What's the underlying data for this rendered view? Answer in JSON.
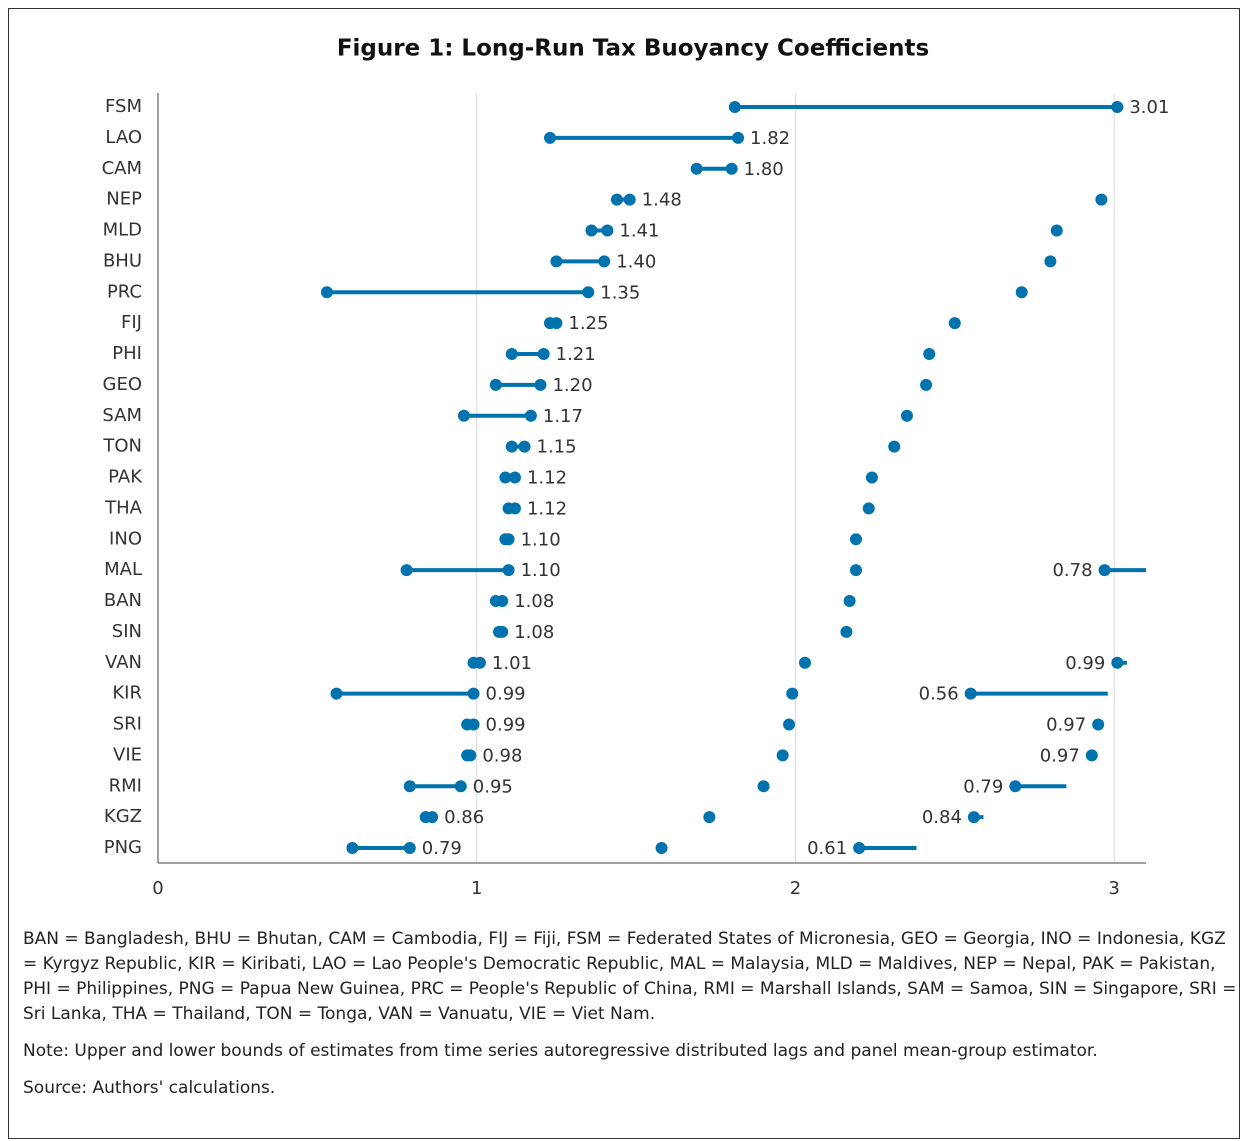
{
  "chart_data": {
    "type": "dumbbell",
    "title": "Figure 1: Long-Run Tax Buoyancy Coefficients",
    "categories": [
      "FSM",
      "LAO",
      "CAM",
      "NEP",
      "MLD",
      "BHU",
      "PRC",
      "FIJ",
      "PHI",
      "GEO",
      "SAM",
      "TON",
      "PAK",
      "THA",
      "INO",
      "MAL",
      "BAN",
      "SIN",
      "VAN",
      "KIR",
      "SRI",
      "VIE",
      "RMI",
      "KGZ",
      "PNG"
    ],
    "series": [
      {
        "color": "#0073ae",
        "values": [
          1.81,
          1.23,
          1.69,
          1.44,
          1.36,
          1.25,
          0.53,
          1.23,
          1.11,
          1.06,
          0.96,
          1.11,
          1.09,
          1.1,
          1.09,
          0.78,
          1.06,
          1.07,
          0.99,
          0.56,
          0.97,
          0.97,
          0.79,
          0.84,
          0.61
        ]
      },
      {
        "color": "#0073ae",
        "values": [
          3.01,
          1.82,
          1.8,
          1.48,
          1.41,
          1.4,
          1.35,
          1.25,
          1.21,
          1.2,
          1.17,
          1.15,
          1.12,
          1.12,
          1.1,
          1.1,
          1.08,
          1.08,
          1.01,
          0.99,
          0.99,
          0.98,
          0.95,
          0.86,
          0.79
        ],
        "value_labels": [
          "3.01",
          "1.82",
          "1.80",
          "1.48",
          "1.41",
          "1.40",
          "1.35",
          "1.25",
          "1.21",
          "1.20",
          "1.17",
          "1.15",
          "1.12",
          "1.12",
          "1.10",
          "1.10",
          "1.08",
          "1.08",
          "1.01",
          "0.99",
          "0.99",
          "0.98",
          "0.95",
          "0.86",
          "0.79"
        ]
      },
      {
        "color": "#0073ae",
        "values": [
          null,
          null,
          null,
          2.96,
          2.82,
          2.8,
          2.71,
          2.5,
          2.42,
          2.41,
          2.35,
          2.31,
          2.24,
          2.23,
          2.19,
          2.19,
          2.17,
          2.16,
          2.03,
          1.99,
          1.98,
          1.96,
          1.9,
          1.73,
          1.58
        ]
      },
      {
        "color": "#0073ae",
        "values": [
          null,
          null,
          null,
          null,
          null,
          null,
          null,
          null,
          null,
          null,
          null,
          null,
          null,
          null,
          null,
          2.97,
          null,
          null,
          3.01,
          2.55,
          2.95,
          2.93,
          2.69,
          2.56,
          2.2
        ]
      },
      {
        "color": "#0073ae",
        "values": [
          null,
          null,
          null,
          null,
          null,
          null,
          null,
          null,
          null,
          null,
          null,
          null,
          null,
          null,
          null,
          3.1,
          null,
          null,
          3.04,
          2.98,
          null,
          null,
          2.85,
          2.59,
          2.38
        ]
      }
    ],
    "xlim": [
      0,
      3.1
    ],
    "xticks": [
      0,
      1,
      2,
      3
    ],
    "grid": true
  },
  "notes": {
    "abbreviations": "BAN = Bangladesh, BHU = Bhutan, CAM = Cambodia, FIJ = Fiji, FSM = Federated States of Micronesia, GEO = Georgia, INO = Indonesia, KGZ = Kyrgyz Republic, KIR = Kiribati, LAO = Lao People's Democratic Republic, MAL = Malaysia, MLD = Maldives, NEP = Nepal, PAK = Pakistan, PHI = Philippines, PNG = Papua New Guinea, PRC = People's Republic of China, RMI = Marshall Islands, SAM = Samoa, SIN = Singapore, SRI = Sri Lanka, THA = Thailand, TON = Tonga, VAN = Vanuatu, VIE = Viet Nam.",
    "note": "Note: Upper and lower bounds of estimates from time series autoregressive distributed lags and panel mean-group estimator.",
    "source": "Source: Authors' calculations."
  }
}
